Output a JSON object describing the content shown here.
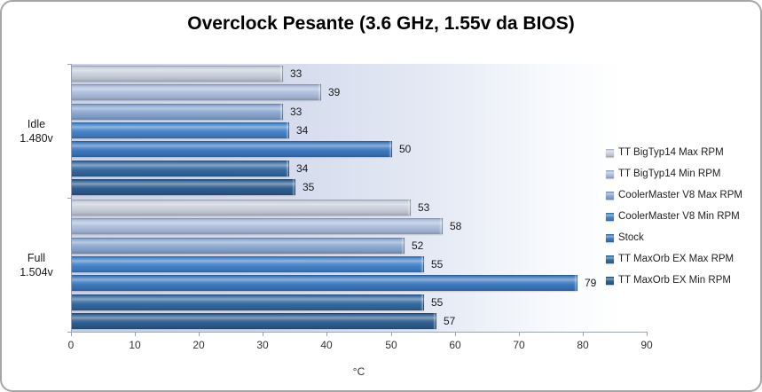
{
  "chart_data": {
    "type": "bar",
    "orientation": "horizontal",
    "title": "Overclock Pesante (3.6 GHz, 1.55v da BIOS)",
    "categories": [
      "Idle 1.480v",
      "Full 1.504v"
    ],
    "series": [
      {
        "name": "TT BigTyp14 Max RPM",
        "color": "#c6cdda",
        "values": [
          33,
          53
        ]
      },
      {
        "name": "TT BigTyp14 Min RPM",
        "color": "#aabbda",
        "values": [
          39,
          58
        ]
      },
      {
        "name": "CoolerMaster V8 Max RPM",
        "color": "#88a5cf",
        "values": [
          33,
          52
        ]
      },
      {
        "name": "CoolerMaster V8 Min RPM",
        "color": "#4281c8",
        "values": [
          34,
          55
        ]
      },
      {
        "name": "Stock",
        "color": "#3b77bd",
        "values": [
          50,
          79
        ]
      },
      {
        "name": "TT MaxOrb EX Max RPM",
        "color": "#33689f",
        "values": [
          34,
          55
        ]
      },
      {
        "name": "TT MaxOrb EX Min RPM",
        "color": "#2d5c8e",
        "values": [
          35,
          57
        ]
      }
    ],
    "xlabel": "°C",
    "xlim": [
      0,
      90
    ],
    "xticks": [
      0,
      10,
      20,
      30,
      40,
      50,
      60,
      70,
      80,
      90
    ],
    "legend_position": "right",
    "grid": false,
    "value_labels": true,
    "axis_color": "#9aa3b4"
  }
}
